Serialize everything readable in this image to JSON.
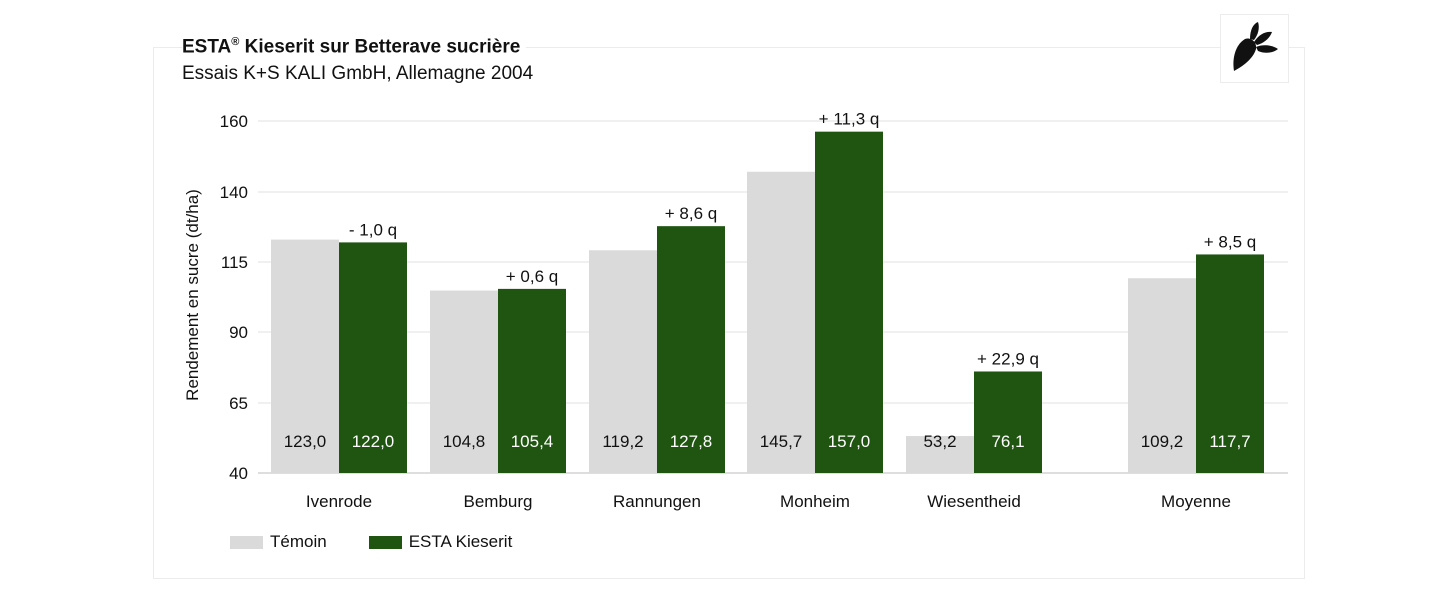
{
  "colors": {
    "control": "#d9dad9",
    "treatment": "#1f5511",
    "grid": "#e2e2e2",
    "axis": "#bdbdbd"
  },
  "logo": {
    "icon": "sugar-beet-icon"
  },
  "chart_data": {
    "type": "bar",
    "title": "ESTA® Kieserit sur Betterave sucrière",
    "title_main": "ESTA",
    "title_mark": "®",
    "title_rest": " Kieserit sur Betterave sucrière",
    "subtitle": "Essais K+S KALI GmbH, Allemagne 2004",
    "ylabel": "Rendement en sucre (dt/ha)",
    "xlabel": "",
    "ylim": [
      40,
      160
    ],
    "yticks": [
      40,
      65,
      90,
      115,
      140,
      160
    ],
    "grid": true,
    "legend_position": "bottom-left",
    "categories": [
      "Ivenrode",
      "Bemburg",
      "Rannungen",
      "Monheim",
      "Wiesentheid",
      "Moyenne"
    ],
    "series": [
      {
        "name": "Témoin",
        "values": [
          123.0,
          104.8,
          119.2,
          145.7,
          53.2,
          109.2
        ],
        "labels": [
          "123,0",
          "104,8",
          "119,2",
          "145,7",
          "53,2",
          "109,2"
        ]
      },
      {
        "name": "ESTA Kieserit",
        "values": [
          122.0,
          105.4,
          127.8,
          157.0,
          76.1,
          117.7
        ],
        "labels": [
          "122,0",
          "105,4",
          "127,8",
          "157,0",
          "76,1",
          "117,7"
        ]
      }
    ],
    "annotations": [
      "- 1,0 q",
      "+ 0,6 q",
      "+ 8,6 q",
      "+ 11,3 q",
      "+ 22,9 q",
      "+ 8,5 q"
    ]
  }
}
